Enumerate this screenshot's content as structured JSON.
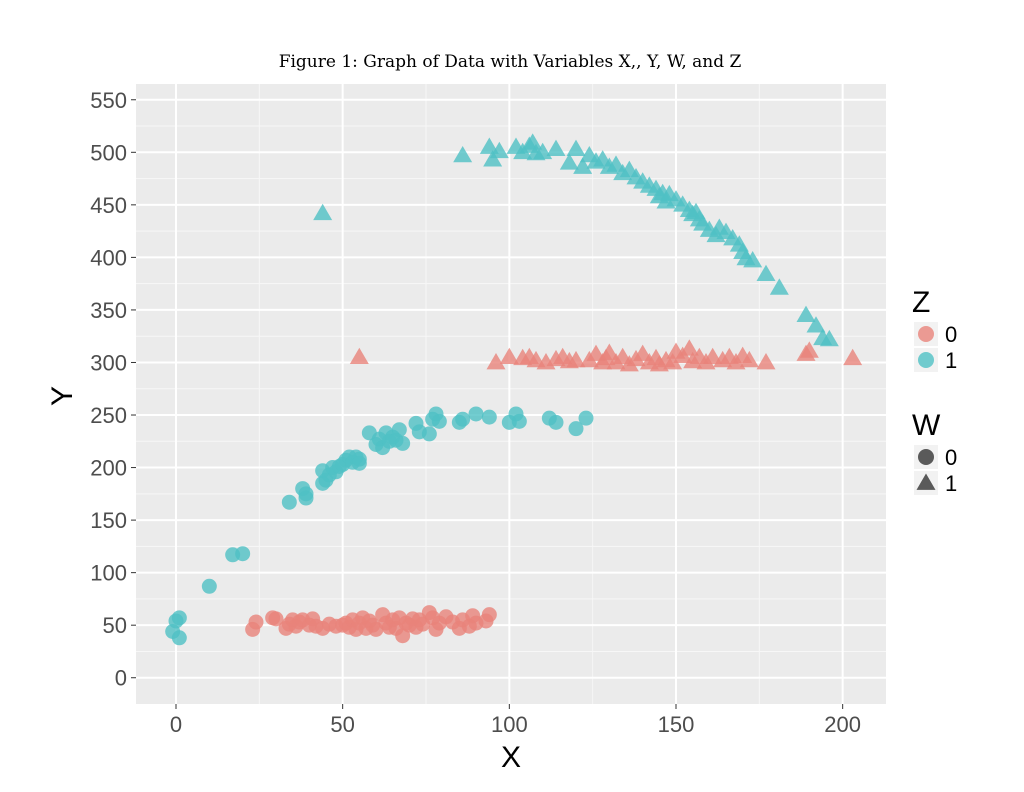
{
  "chart_data": {
    "type": "scatter",
    "title": "Figure 1: Graph of Data with Variables X,, Y, W, and Z",
    "xlabel": "X",
    "ylabel": "Y",
    "xlim": [
      -12,
      213
    ],
    "ylim": [
      -25,
      565
    ],
    "x_ticks": [
      0,
      50,
      100,
      150,
      200
    ],
    "y_ticks": [
      0,
      50,
      100,
      150,
      200,
      250,
      300,
      350,
      400,
      450,
      500,
      550
    ],
    "grid": true,
    "background": "#ebebeb",
    "legend_position": "right",
    "legends": [
      {
        "title": "Z",
        "entries": [
          {
            "label": "0",
            "color": "#e8837a",
            "shape": "circle"
          },
          {
            "label": "1",
            "color": "#4fc1c4",
            "shape": "circle"
          }
        ]
      },
      {
        "title": "W",
        "entries": [
          {
            "label": "0",
            "color": "#333333",
            "shape": "circle"
          },
          {
            "label": "1",
            "color": "#333333",
            "shape": "triangle"
          }
        ]
      }
    ],
    "colors": {
      "z0": "#e8837a",
      "z1": "#4fc1c4"
    },
    "series": [
      {
        "z": "1",
        "w": "0",
        "points": [
          [
            -1,
            44
          ],
          [
            0,
            54
          ],
          [
            1,
            38
          ],
          [
            1,
            57
          ],
          [
            10,
            87
          ],
          [
            17,
            117
          ],
          [
            20,
            118
          ],
          [
            34,
            167
          ],
          [
            38,
            180
          ],
          [
            39,
            175
          ],
          [
            39,
            171
          ],
          [
            44,
            185
          ],
          [
            44,
            197
          ],
          [
            45,
            188
          ],
          [
            46,
            193
          ],
          [
            47,
            200
          ],
          [
            48,
            196
          ],
          [
            49,
            201
          ],
          [
            50,
            203
          ],
          [
            51,
            207
          ],
          [
            52,
            210
          ],
          [
            53,
            205
          ],
          [
            54,
            210
          ],
          [
            55,
            208
          ],
          [
            55,
            204
          ],
          [
            58,
            233
          ],
          [
            60,
            222
          ],
          [
            61,
            227
          ],
          [
            62,
            219
          ],
          [
            63,
            233
          ],
          [
            64,
            225
          ],
          [
            65,
            229
          ],
          [
            66,
            226
          ],
          [
            67,
            236
          ],
          [
            68,
            223
          ],
          [
            72,
            242
          ],
          [
            73,
            234
          ],
          [
            76,
            232
          ],
          [
            77,
            246
          ],
          [
            78,
            251
          ],
          [
            79,
            244
          ],
          [
            85,
            243
          ],
          [
            86,
            246
          ],
          [
            90,
            251
          ],
          [
            94,
            248
          ],
          [
            100,
            243
          ],
          [
            102,
            251
          ],
          [
            103,
            244
          ],
          [
            112,
            247
          ],
          [
            114,
            243
          ],
          [
            120,
            237
          ],
          [
            123,
            247
          ]
        ]
      },
      {
        "z": "1",
        "w": "1",
        "points": [
          [
            44,
            442
          ],
          [
            86,
            497
          ],
          [
            94,
            505
          ],
          [
            95,
            493
          ],
          [
            97,
            501
          ],
          [
            102,
            505
          ],
          [
            104,
            500
          ],
          [
            106,
            506
          ],
          [
            107,
            509
          ],
          [
            108,
            499
          ],
          [
            110,
            500
          ],
          [
            114,
            503
          ],
          [
            118,
            490
          ],
          [
            120,
            503
          ],
          [
            122,
            486
          ],
          [
            124,
            497
          ],
          [
            126,
            491
          ],
          [
            128,
            493
          ],
          [
            130,
            486
          ],
          [
            132,
            488
          ],
          [
            134,
            480
          ],
          [
            136,
            483
          ],
          [
            138,
            476
          ],
          [
            140,
            472
          ],
          [
            142,
            468
          ],
          [
            144,
            465
          ],
          [
            145,
            458
          ],
          [
            146,
            461
          ],
          [
            147,
            453
          ],
          [
            148,
            460
          ],
          [
            150,
            455
          ],
          [
            152,
            450
          ],
          [
            154,
            445
          ],
          [
            155,
            441
          ],
          [
            156,
            443
          ],
          [
            157,
            436
          ],
          [
            158,
            432
          ],
          [
            160,
            426
          ],
          [
            162,
            421
          ],
          [
            163,
            428
          ],
          [
            165,
            424
          ],
          [
            167,
            418
          ],
          [
            169,
            412
          ],
          [
            170,
            405
          ],
          [
            171,
            399
          ],
          [
            173,
            397
          ],
          [
            177,
            384
          ],
          [
            181,
            371
          ],
          [
            189,
            345
          ],
          [
            192,
            335
          ],
          [
            194,
            323
          ],
          [
            196,
            322
          ]
        ]
      },
      {
        "z": "0",
        "w": "0",
        "points": [
          [
            23,
            46
          ],
          [
            24,
            53
          ],
          [
            29,
            57
          ],
          [
            30,
            56
          ],
          [
            33,
            47
          ],
          [
            34,
            51
          ],
          [
            35,
            55
          ],
          [
            36,
            49
          ],
          [
            37,
            53
          ],
          [
            38,
            55
          ],
          [
            40,
            50
          ],
          [
            41,
            56
          ],
          [
            42,
            49
          ],
          [
            44,
            47
          ],
          [
            46,
            51
          ],
          [
            48,
            49
          ],
          [
            50,
            50
          ],
          [
            51,
            52
          ],
          [
            52,
            48
          ],
          [
            53,
            55
          ],
          [
            54,
            46
          ],
          [
            55,
            52
          ],
          [
            56,
            57
          ],
          [
            57,
            47
          ],
          [
            58,
            54
          ],
          [
            59,
            50
          ],
          [
            60,
            46
          ],
          [
            62,
            60
          ],
          [
            63,
            52
          ],
          [
            64,
            48
          ],
          [
            65,
            55
          ],
          [
            66,
            47
          ],
          [
            67,
            57
          ],
          [
            68,
            40
          ],
          [
            69,
            52
          ],
          [
            70,
            50
          ],
          [
            71,
            56
          ],
          [
            72,
            48
          ],
          [
            73,
            55
          ],
          [
            74,
            51
          ],
          [
            76,
            62
          ],
          [
            77,
            57
          ],
          [
            78,
            46
          ],
          [
            79,
            52
          ],
          [
            81,
            58
          ],
          [
            83,
            53
          ],
          [
            85,
            47
          ],
          [
            86,
            55
          ],
          [
            88,
            49
          ],
          [
            89,
            59
          ],
          [
            90,
            52
          ],
          [
            93,
            54
          ],
          [
            94,
            60
          ]
        ]
      },
      {
        "z": "0",
        "w": "1",
        "points": [
          [
            55,
            305
          ],
          [
            96,
            300
          ],
          [
            100,
            305
          ],
          [
            104,
            304
          ],
          [
            106,
            305
          ],
          [
            108,
            302
          ],
          [
            111,
            300
          ],
          [
            114,
            303
          ],
          [
            116,
            305
          ],
          [
            118,
            301
          ],
          [
            120,
            302
          ],
          [
            124,
            302
          ],
          [
            126,
            308
          ],
          [
            128,
            300
          ],
          [
            129,
            304
          ],
          [
            130,
            309
          ],
          [
            132,
            300
          ],
          [
            134,
            305
          ],
          [
            136,
            298
          ],
          [
            138,
            303
          ],
          [
            140,
            308
          ],
          [
            142,
            300
          ],
          [
            144,
            304
          ],
          [
            145,
            298
          ],
          [
            147,
            302
          ],
          [
            149,
            300
          ],
          [
            150,
            310
          ],
          [
            152,
            306
          ],
          [
            154,
            313
          ],
          [
            155,
            301
          ],
          [
            157,
            305
          ],
          [
            159,
            300
          ],
          [
            161,
            305
          ],
          [
            164,
            302
          ],
          [
            166,
            305
          ],
          [
            168,
            300
          ],
          [
            170,
            306
          ],
          [
            172,
            302
          ],
          [
            177,
            300
          ],
          [
            189,
            308
          ],
          [
            190,
            311
          ],
          [
            203,
            304
          ]
        ]
      }
    ]
  }
}
